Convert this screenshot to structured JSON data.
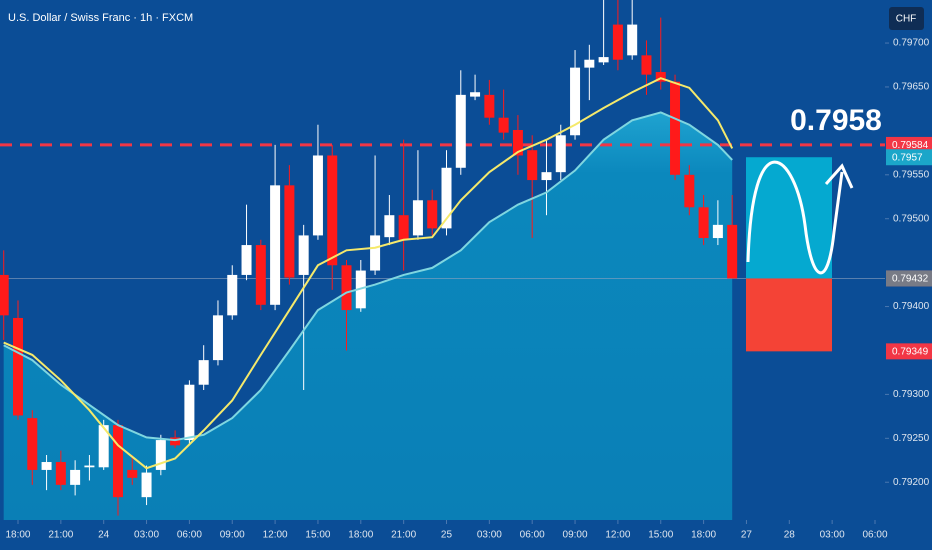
{
  "chart_data": {
    "type": "candlestick",
    "title": "U.S. Dollar / Swiss Franc · 1h · FXCM",
    "currency": "CHF",
    "annotation": "0.7958",
    "up_color": "#ffffff",
    "down_color": "#ff1a1a",
    "x": [
      -1,
      0,
      1,
      2,
      3,
      4,
      5,
      6,
      7,
      8,
      9,
      10,
      11,
      12,
      13,
      14,
      15,
      16,
      17,
      18,
      19,
      20,
      21,
      22,
      23,
      24,
      25,
      26,
      27,
      28,
      29,
      30,
      31,
      32,
      33,
      34,
      35,
      36,
      37,
      38,
      39,
      40,
      41,
      42,
      43,
      44,
      45,
      46,
      47,
      48,
      49,
      50
    ],
    "open": [
      0.79436,
      0.79387,
      0.79273,
      0.79214,
      0.79223,
      0.79197,
      0.79217,
      0.79217,
      0.79265,
      0.79214,
      0.79183,
      0.79214,
      0.79251,
      0.79248,
      0.79311,
      0.79339,
      0.7939,
      0.79436,
      0.7947,
      0.79402,
      0.79538,
      0.79436,
      0.79481,
      0.79572,
      0.79447,
      0.79398,
      0.79441,
      0.79479,
      0.79504,
      0.79481,
      0.79521,
      0.79489,
      0.79558,
      0.79639,
      0.79641,
      0.79615,
      0.79601,
      0.79578,
      0.79544,
      0.79553,
      0.79595,
      0.79672,
      0.79678,
      0.79721,
      0.79686,
      0.79686,
      0.79667,
      0.79656,
      0.7955,
      0.79513,
      0.79478,
      0.79493
    ],
    "high": [
      0.79464,
      0.79407,
      0.79282,
      0.79231,
      0.79236,
      0.79225,
      0.79231,
      0.79271,
      0.79271,
      0.79231,
      0.79219,
      0.79254,
      0.79259,
      0.79316,
      0.79356,
      0.79407,
      0.79447,
      0.79516,
      0.79476,
      0.79584,
      0.79561,
      0.79493,
      0.79607,
      0.79584,
      0.79453,
      0.79453,
      0.79572,
      0.79527,
      0.7959,
      0.79578,
      0.79533,
      0.79578,
      0.79669,
      0.79664,
      0.79658,
      0.79647,
      0.79618,
      0.79595,
      0.7959,
      0.79607,
      0.79692,
      0.79698,
      0.7976,
      0.7976,
      0.7976,
      0.79703,
      0.79729,
      0.79664,
      0.79561,
      0.79527,
      0.79521,
      0.79527
    ],
    "low": [
      0.79362,
      0.79271,
      0.79197,
      0.79191,
      0.79191,
      0.79185,
      0.79202,
      0.79214,
      0.79162,
      0.79197,
      0.79174,
      0.79208,
      0.79239,
      0.79242,
      0.79305,
      0.79333,
      0.79385,
      0.7943,
      0.79396,
      0.79396,
      0.79425,
      0.79305,
      0.79476,
      0.79419,
      0.7935,
      0.79394,
      0.79436,
      0.7947,
      0.79441,
      0.79476,
      0.79481,
      0.79481,
      0.7955,
      0.79635,
      0.79607,
      0.7959,
      0.7955,
      0.79478,
      0.79504,
      0.79544,
      0.7959,
      0.79635,
      0.79675,
      0.79669,
      0.79681,
      0.79641,
      0.79647,
      0.79544,
      0.79504,
      0.7947,
      0.7947,
      0.79432
    ],
    "close": [
      0.7939,
      0.79276,
      0.79214,
      0.79223,
      0.79197,
      0.79214,
      0.79219,
      0.79265,
      0.79183,
      0.79205,
      0.79211,
      0.79248,
      0.79242,
      0.79311,
      0.79339,
      0.7939,
      0.79436,
      0.7947,
      0.79402,
      0.79538,
      0.79433,
      0.79481,
      0.79572,
      0.79447,
      0.79396,
      0.79441,
      0.79481,
      0.79504,
      0.79476,
      0.79521,
      0.79489,
      0.79558,
      0.79641,
      0.79644,
      0.79615,
      0.79598,
      0.79572,
      0.79544,
      0.79553,
      0.79595,
      0.79672,
      0.79681,
      0.79684,
      0.79681,
      0.79721,
      0.79664,
      0.79656,
      0.7955,
      0.79513,
      0.79478,
      0.79493,
      0.79432
    ],
    "series": [
      {
        "color": "#7fd6e0",
        "area": true,
        "x": [
          -1,
          1,
          3,
          5,
          7,
          9,
          11,
          13,
          15,
          17,
          19,
          21,
          23,
          25,
          27,
          29,
          31,
          33,
          35,
          37,
          39,
          41,
          43,
          45,
          47,
          49,
          50
        ],
        "values": [
          0.79356,
          0.79339,
          0.79311,
          0.79288,
          0.79265,
          0.79251,
          0.79248,
          0.79254,
          0.79273,
          0.79305,
          0.7935,
          0.79396,
          0.79416,
          0.79425,
          0.79436,
          0.79444,
          0.79464,
          0.79496,
          0.79516,
          0.7953,
          0.79555,
          0.7959,
          0.79612,
          0.79621,
          0.79607,
          0.79584,
          0.79567
        ]
      },
      {
        "color": "#f5e96b",
        "area": false,
        "x": [
          -1,
          1,
          3,
          5,
          7,
          9,
          11,
          13,
          15,
          17,
          19,
          21,
          23,
          25,
          27,
          29,
          31,
          33,
          35,
          37,
          39,
          41,
          43,
          45,
          47,
          49,
          50
        ],
        "values": [
          0.79359,
          0.79345,
          0.79316,
          0.79282,
          0.79242,
          0.79216,
          0.79227,
          0.79259,
          0.79293,
          0.79345,
          0.79396,
          0.79447,
          0.79464,
          0.79467,
          0.79476,
          0.79479,
          0.79521,
          0.79553,
          0.79576,
          0.7959,
          0.79607,
          0.79626,
          0.79644,
          0.7966,
          0.79649,
          0.79612,
          0.7958
        ]
      }
    ],
    "price_labels": [
      {
        "value": 0.79584,
        "color": "#f23645",
        "line": "dashed"
      },
      {
        "value": 0.7957,
        "color": "#1ba6c9",
        "line": "none"
      },
      {
        "value": 0.79432,
        "color": "#f23645",
        "line": "none"
      },
      {
        "value": 0.79432,
        "color": "#787b86",
        "line": "solid"
      },
      {
        "value": 0.79349,
        "color": "#f23645",
        "line": "none"
      }
    ],
    "xlim": [
      -1.26,
      60.7
    ],
    "ylim": [
      0.79157,
      0.79749
    ],
    "xticks": [
      {
        "value": 0,
        "label": "18:00"
      },
      {
        "value": 3,
        "label": "21:00"
      },
      {
        "value": 6,
        "label": "24"
      },
      {
        "value": 9,
        "label": "03:00"
      },
      {
        "value": 12,
        "label": "06:00"
      },
      {
        "value": 15,
        "label": "09:00"
      },
      {
        "value": 18,
        "label": "12:00"
      },
      {
        "value": 21,
        "label": "15:00"
      },
      {
        "value": 24,
        "label": "18:00"
      },
      {
        "value": 27,
        "label": "21:00"
      },
      {
        "value": 30,
        "label": "25"
      },
      {
        "value": 33,
        "label": "03:00"
      },
      {
        "value": 36,
        "label": "06:00"
      },
      {
        "value": 39,
        "label": "09:00"
      },
      {
        "value": 42,
        "label": "12:00"
      },
      {
        "value": 45,
        "label": "15:00"
      },
      {
        "value": 48,
        "label": "18:00"
      },
      {
        "value": 51,
        "label": "27"
      },
      {
        "value": 54,
        "label": "28"
      },
      {
        "value": 57,
        "label": "03:00"
      },
      {
        "value": 60,
        "label": "06:00"
      }
    ],
    "yticks": [
      {
        "value": 0.792,
        "label": "0.79200"
      },
      {
        "value": 0.7925,
        "label": "0.79250"
      },
      {
        "value": 0.793,
        "label": "0.79300"
      },
      {
        "value": 0.794,
        "label": "0.79400"
      },
      {
        "value": 0.795,
        "label": "0.79500"
      },
      {
        "value": 0.7955,
        "label": "0.79550"
      },
      {
        "value": 0.7965,
        "label": "0.79650"
      },
      {
        "value": 0.797,
        "label": "0.79700"
      }
    ]
  }
}
